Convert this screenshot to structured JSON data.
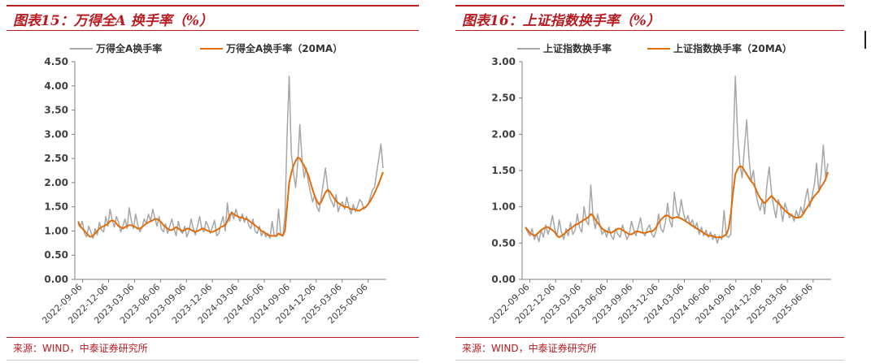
{
  "panels": [
    {
      "title": "图表15：万得全A 换手率（%）",
      "source": "来源：WIND，中泰证券研究所",
      "chart_data": {
        "type": "line",
        "title": "",
        "xlabel": "",
        "ylabel": "",
        "ylim": [
          0,
          4.5
        ],
        "yticks": [
          "0.00",
          "0.50",
          "1.00",
          "1.50",
          "2.00",
          "2.50",
          "3.00",
          "3.50",
          "4.00",
          "4.50"
        ],
        "xticks": [
          "2022-09-06",
          "2022-12-06",
          "2023-03-06",
          "2023-06-06",
          "2023-09-06",
          "2023-12-06",
          "2024-03-06",
          "2024-06-06",
          "2024-09-06",
          "2024-12-06",
          "2025-03-06",
          "2025-06-06"
        ],
        "legend_position": "top",
        "colors": {
          "raw": "#a6a6a6",
          "ma": "#e36c0a"
        },
        "series": [
          {
            "name": "万得全A换手率",
            "style": "raw",
            "values": [
              1.15,
              1.08,
              1.2,
              0.95,
              0.88,
              1.1,
              0.98,
              0.85,
              1.05,
              0.92,
              1.18,
              1.02,
              0.98,
              1.3,
              1.1,
              1.45,
              1.22,
              1.08,
              1.3,
              1.18,
              0.98,
              1.1,
              1.25,
              1.05,
              1.48,
              1.2,
              1.05,
              1.35,
              1.12,
              0.98,
              1.08,
              1.25,
              1.15,
              1.35,
              1.2,
              1.45,
              1.28,
              1.1,
              1.3,
              1.05,
              0.98,
              1.15,
              0.95,
              1.1,
              1.25,
              1.05,
              0.9,
              1.2,
              1.0,
              0.95,
              1.1,
              0.88,
              1.0,
              1.25,
              1.05,
              0.92,
              1.1,
              1.3,
              1.05,
              0.98,
              1.2,
              1.1,
              0.95,
              1.08,
              1.22,
              0.9,
              0.95,
              1.15,
              1.3,
              1.0,
              1.58,
              1.2,
              1.4,
              1.25,
              1.45,
              1.3,
              1.2,
              1.35,
              1.18,
              1.3,
              1.12,
              1.05,
              1.25,
              1.0,
              0.95,
              1.1,
              0.9,
              1.0,
              0.88,
              0.95,
              0.85,
              1.2,
              0.9,
              0.88,
              1.45,
              0.95,
              0.9,
              1.3,
              3.0,
              4.2,
              2.6,
              2.2,
              1.9,
              2.4,
              3.2,
              2.5,
              2.1,
              2.3,
              2.0,
              1.8,
              1.6,
              1.75,
              1.5,
              1.4,
              1.7,
              2.0,
              2.3,
              1.9,
              1.7,
              1.6,
              1.5,
              1.75,
              1.4,
              1.55,
              1.6,
              1.45,
              1.7,
              1.5,
              1.35,
              1.55,
              1.4,
              1.5,
              1.65,
              1.6,
              1.45,
              1.5,
              1.55,
              1.7,
              1.85,
              1.9,
              2.2,
              2.5,
              2.8,
              2.3
            ]
          },
          {
            "name": "万得全A换手率（20MA）",
            "style": "ma",
            "values": [
              1.2,
              1.1,
              1.05,
              1.0,
              0.95,
              0.9,
              0.88,
              0.9,
              0.95,
              1.0,
              1.05,
              1.08,
              1.1,
              1.12,
              1.15,
              1.2,
              1.22,
              1.2,
              1.15,
              1.1,
              1.08,
              1.05,
              1.08,
              1.1,
              1.12,
              1.12,
              1.1,
              1.08,
              1.05,
              1.05,
              1.08,
              1.12,
              1.15,
              1.18,
              1.2,
              1.22,
              1.25,
              1.25,
              1.22,
              1.18,
              1.12,
              1.08,
              1.05,
              1.02,
              1.02,
              1.05,
              1.08,
              1.05,
              1.02,
              1.0,
              1.02,
              1.05,
              1.05,
              1.02,
              1.0,
              0.98,
              1.0,
              1.02,
              1.05,
              1.05,
              1.02,
              1.0,
              0.98,
              0.98,
              1.0,
              1.02,
              1.05,
              1.08,
              1.1,
              1.12,
              1.2,
              1.32,
              1.38,
              1.35,
              1.32,
              1.3,
              1.28,
              1.28,
              1.25,
              1.25,
              1.22,
              1.18,
              1.15,
              1.12,
              1.08,
              1.05,
              1.0,
              0.98,
              0.95,
              0.92,
              0.9,
              0.9,
              0.9,
              0.9,
              0.95,
              0.92,
              0.9,
              1.0,
              1.5,
              2.0,
              2.2,
              2.35,
              2.45,
              2.52,
              2.5,
              2.42,
              2.35,
              2.25,
              2.15,
              2.0,
              1.85,
              1.72,
              1.62,
              1.55,
              1.6,
              1.7,
              1.8,
              1.85,
              1.82,
              1.75,
              1.68,
              1.62,
              1.58,
              1.55,
              1.52,
              1.5,
              1.5,
              1.48,
              1.45,
              1.45,
              1.45,
              1.42,
              1.42,
              1.45,
              1.48,
              1.5,
              1.55,
              1.62,
              1.7,
              1.78,
              1.88,
              1.98,
              2.1,
              2.22
            ]
          }
        ]
      }
    },
    {
      "title": "图表16：上证指数换手率（%）",
      "source": "来源：WIND，中泰证券研究所",
      "chart_data": {
        "type": "line",
        "title": "",
        "xlabel": "",
        "ylabel": "",
        "ylim": [
          0,
          3.0
        ],
        "yticks": [
          "0.00",
          "0.50",
          "1.00",
          "1.50",
          "2.00",
          "2.50",
          "3.00"
        ],
        "xticks": [
          "2022-09-06",
          "2022-12-06",
          "2023-03-06",
          "2023-06-06",
          "2023-09-06",
          "2023-12-06",
          "2024-03-06",
          "2024-06-06",
          "2024-09-06",
          "2024-12-06",
          "2025-03-06",
          "2025-06-06"
        ],
        "legend_position": "top",
        "colors": {
          "raw": "#a6a6a6",
          "ma": "#e36c0a"
        },
        "series": [
          {
            "name": "上证指数换手率",
            "style": "raw",
            "values": [
              0.72,
              0.65,
              0.6,
              0.7,
              0.55,
              0.62,
              0.52,
              0.68,
              0.58,
              0.75,
              0.62,
              0.72,
              0.88,
              0.7,
              0.6,
              0.82,
              0.65,
              0.55,
              0.7,
              0.6,
              0.78,
              0.62,
              0.68,
              0.9,
              0.72,
              0.65,
              1.0,
              0.8,
              0.75,
              1.3,
              0.85,
              0.7,
              0.9,
              0.75,
              0.62,
              0.68,
              0.58,
              0.72,
              0.6,
              0.55,
              0.7,
              0.62,
              0.58,
              0.75,
              0.65,
              0.55,
              0.62,
              0.8,
              0.68,
              0.6,
              0.72,
              0.85,
              0.65,
              0.6,
              0.7,
              0.75,
              0.62,
              0.58,
              0.68,
              0.9,
              0.7,
              0.65,
              0.78,
              1.05,
              0.8,
              0.72,
              1.2,
              0.95,
              0.85,
              1.1,
              0.92,
              0.8,
              0.88,
              0.75,
              0.82,
              0.7,
              0.78,
              0.62,
              0.72,
              0.6,
              0.68,
              0.58,
              0.65,
              0.55,
              0.62,
              0.5,
              0.6,
              0.55,
              0.95,
              0.6,
              0.58,
              0.62,
              1.8,
              2.8,
              2.0,
              1.6,
              1.4,
              1.8,
              2.2,
              1.7,
              1.35,
              1.5,
              1.2,
              1.05,
              0.95,
              1.1,
              0.9,
              1.3,
              1.55,
              1.2,
              1.0,
              0.85,
              1.1,
              1.0,
              0.8,
              1.05,
              0.95,
              0.85,
              0.9,
              0.8,
              0.95,
              0.85,
              1.0,
              0.9,
              1.1,
              1.25,
              1.0,
              1.15,
              1.3,
              1.6,
              1.2,
              1.45,
              1.85,
              1.4,
              1.6
            ]
          },
          {
            "name": "上证指数换手率（20MA）",
            "style": "ma",
            "values": [
              0.72,
              0.68,
              0.64,
              0.62,
              0.6,
              0.62,
              0.65,
              0.68,
              0.7,
              0.72,
              0.72,
              0.7,
              0.68,
              0.65,
              0.6,
              0.58,
              0.6,
              0.62,
              0.65,
              0.68,
              0.7,
              0.72,
              0.75,
              0.76,
              0.78,
              0.8,
              0.82,
              0.84,
              0.86,
              0.9,
              0.88,
              0.82,
              0.78,
              0.74,
              0.7,
              0.68,
              0.66,
              0.65,
              0.64,
              0.66,
              0.68,
              0.7,
              0.7,
              0.68,
              0.66,
              0.64,
              0.62,
              0.62,
              0.64,
              0.66,
              0.66,
              0.65,
              0.64,
              0.64,
              0.65,
              0.66,
              0.66,
              0.68,
              0.72,
              0.78,
              0.82,
              0.85,
              0.88,
              0.88,
              0.86,
              0.84,
              0.85,
              0.86,
              0.85,
              0.84,
              0.82,
              0.8,
              0.78,
              0.76,
              0.74,
              0.72,
              0.7,
              0.68,
              0.66,
              0.64,
              0.62,
              0.6,
              0.6,
              0.6,
              0.58,
              0.58,
              0.58,
              0.58,
              0.6,
              0.62,
              0.7,
              0.9,
              1.2,
              1.45,
              1.52,
              1.56,
              1.55,
              1.5,
              1.45,
              1.4,
              1.35,
              1.32,
              1.25,
              1.18,
              1.12,
              1.08,
              1.05,
              1.08,
              1.12,
              1.15,
              1.12,
              1.08,
              1.05,
              1.02,
              0.98,
              0.95,
              0.92,
              0.9,
              0.88,
              0.86,
              0.85,
              0.85,
              0.86,
              0.9,
              0.95,
              1.0,
              1.05,
              1.1,
              1.15,
              1.18,
              1.22,
              1.28,
              1.32,
              1.38,
              1.48
            ]
          }
        ]
      }
    }
  ]
}
